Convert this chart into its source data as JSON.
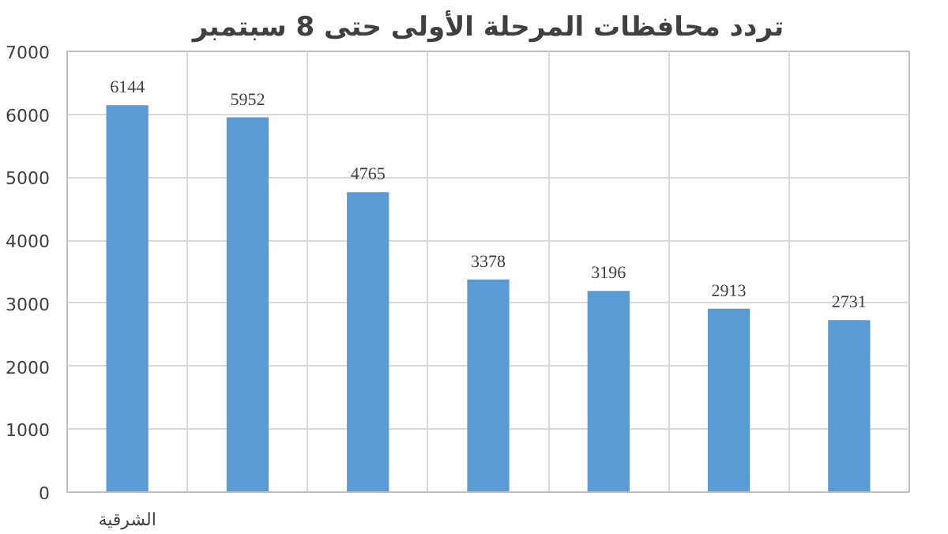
{
  "chart_data": {
    "type": "bar",
    "title": "تردد محافظات المرحلة الأولى حتى 8 سبتمبر",
    "categories": [
      "الشرقية",
      null,
      null,
      null,
      null,
      null,
      null
    ],
    "values": [
      6144,
      5952,
      4765,
      3378,
      3196,
      2913,
      2731
    ],
    "color": "#5b9bd5",
    "ylim": [
      0,
      7000
    ],
    "yticks": [
      0,
      1000,
      2000,
      3000,
      4000,
      5000,
      6000,
      7000
    ],
    "grid": true,
    "data_labels": true
  }
}
